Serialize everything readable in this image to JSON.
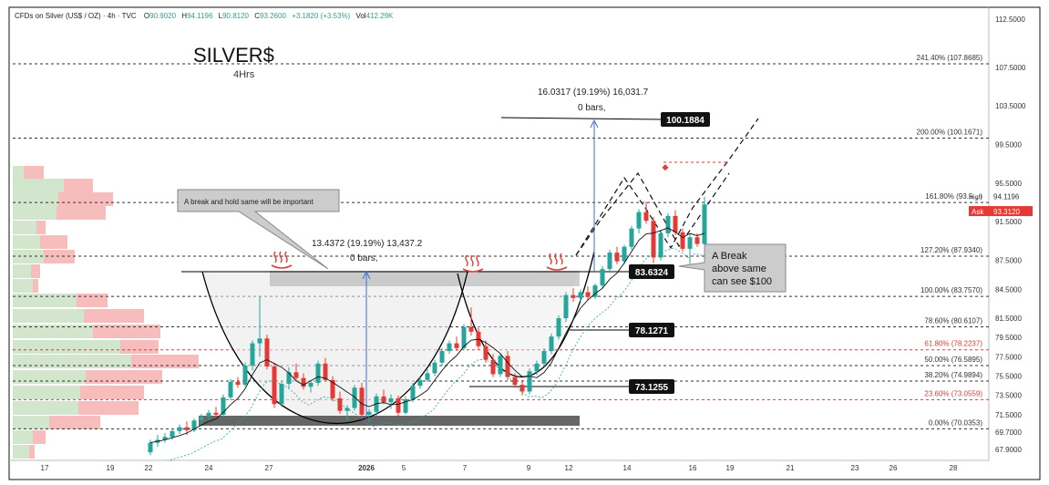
{
  "header": {
    "symbol_line": "CFDs on Silver (US$ / OZ) · 4h · TVC",
    "open_label": "O",
    "open": "90.9020",
    "high_label": "H",
    "high": "94.1196",
    "low_label": "L",
    "low": "90.8120",
    "close_label": "C",
    "close": "93.2600",
    "change": "+3.1820 (+3.53%)",
    "vol_label": "Vol",
    "vol": "412.29K"
  },
  "title": {
    "main": "SILVER$",
    "sub": "4Hrs"
  },
  "price_axis": {
    "ticks": [
      "112.5000",
      "107.5000",
      "103.5000",
      "99.5000",
      "95.5000",
      "91.5000",
      "87.5000",
      "84.5000",
      "81.5000",
      "79.5000",
      "77.5000",
      "75.5000",
      "73.5000",
      "71.5000",
      "69.7000",
      "67.9000"
    ],
    "high_tag": {
      "label": "High",
      "value": "94.1196"
    },
    "ask_tag": {
      "label": "Ask",
      "value": "93.3120"
    }
  },
  "time_axis": [
    "17",
    "19",
    "22",
    "24",
    "27",
    "2026",
    "5",
    "7",
    "9",
    "12",
    "14",
    "16",
    "19",
    "21",
    "23",
    "26",
    "28"
  ],
  "fib_levels": [
    {
      "label": "241.40% (107.8685)",
      "color": "#333333",
      "price": 107.8685
    },
    {
      "label": "200.00% (100.1671)",
      "color": "#333333",
      "price": 100.1671
    },
    {
      "label": "161.80% (93.5…)",
      "color": "#333333",
      "price": 93.5
    },
    {
      "label": "127.20% (87.9340)",
      "color": "#333333",
      "price": 87.934
    },
    {
      "label": "100.00% (83.7570)",
      "color": "#333333",
      "price": 83.757
    },
    {
      "label": "78.60% (80.6107)",
      "color": "#333333",
      "price": 80.6107
    },
    {
      "label": "61.80% (78.2237)",
      "color": "#e53935",
      "price": 78.2237
    },
    {
      "label": "50.00% (76.5895)",
      "color": "#333333",
      "price": 76.5895
    },
    {
      "label": "38.20% (74.9894)",
      "color": "#333333",
      "price": 74.9894
    },
    {
      "label": "23.60% (73.0559)",
      "color": "#e53935",
      "price": 73.0559
    },
    {
      "label": "0.00% (70.0353)",
      "color": "#333333",
      "price": 70.0353
    }
  ],
  "annotations": {
    "callout_hold": "A break and hold same will be important",
    "measure_left": "13.4372 (19.19%) 13,437.2",
    "measure_left_bars": "0 bars,",
    "measure_right": "16.0317 (19.19%) 16,031.7",
    "measure_right_bars": "0 bars,",
    "label_target": "100.1884",
    "label_resist": "83.6324",
    "label_mid": "78.1271",
    "label_support": "73.1255",
    "break_note_line1": "A Break",
    "break_note_line2": "above same",
    "break_note_line3": "can see $100",
    "cup_icon": "hot-springs-icon"
  },
  "chart_data": {
    "type": "candlestick",
    "title": "SILVER$",
    "subtitle": "4Hrs",
    "ylim": [
      66.9,
      113.5
    ],
    "candles": [
      [
        67.6,
        68.9,
        67.3,
        68.6
      ],
      [
        68.6,
        69.4,
        68.2,
        68.9
      ],
      [
        68.9,
        69.6,
        68.6,
        69.2
      ],
      [
        69.2,
        70.1,
        68.9,
        69.8
      ],
      [
        69.8,
        70.5,
        69.5,
        70.2
      ],
      [
        70.2,
        70.8,
        69.4,
        69.9
      ],
      [
        69.9,
        71.1,
        69.7,
        70.9
      ],
      [
        70.9,
        71.6,
        70.5,
        71.3
      ],
      [
        71.3,
        72.0,
        70.9,
        71.7
      ],
      [
        71.7,
        72.3,
        71.1,
        71.5
      ],
      [
        71.5,
        73.6,
        71.3,
        73.3
      ],
      [
        73.3,
        75.2,
        73.0,
        74.9
      ],
      [
        74.9,
        75.4,
        74.3,
        74.6
      ],
      [
        74.6,
        76.9,
        74.4,
        76.6
      ],
      [
        76.6,
        79.2,
        76.1,
        78.9
      ],
      [
        78.9,
        83.8,
        77.5,
        79.4
      ],
      [
        79.4,
        79.8,
        76.2,
        76.5
      ],
      [
        76.5,
        76.9,
        72.2,
        72.6
      ],
      [
        72.6,
        75.0,
        72.3,
        74.7
      ],
      [
        74.7,
        76.4,
        74.2,
        75.9
      ],
      [
        75.9,
        76.8,
        75.0,
        75.3
      ],
      [
        75.3,
        75.8,
        74.1,
        74.4
      ],
      [
        74.4,
        75.1,
        73.8,
        74.8
      ],
      [
        74.8,
        77.1,
        74.5,
        76.8
      ],
      [
        76.8,
        77.4,
        74.9,
        75.1
      ],
      [
        75.1,
        75.5,
        72.9,
        73.2
      ],
      [
        73.2,
        73.9,
        71.6,
        71.9
      ],
      [
        71.9,
        72.5,
        70.9,
        72.2
      ],
      [
        72.2,
        74.6,
        71.9,
        74.3
      ],
      [
        74.3,
        74.8,
        71.2,
        71.5
      ],
      [
        71.5,
        72.1,
        70.7,
        71.8
      ],
      [
        71.8,
        73.7,
        71.4,
        73.4
      ],
      [
        73.4,
        74.1,
        72.6,
        72.8
      ],
      [
        72.8,
        73.6,
        72.1,
        73.2
      ],
      [
        73.2,
        73.5,
        71.4,
        71.7
      ],
      [
        71.7,
        73.4,
        71.5,
        73.1
      ],
      [
        73.1,
        74.8,
        72.8,
        74.5
      ],
      [
        74.5,
        75.4,
        74.2,
        75.1
      ],
      [
        75.1,
        76.2,
        74.9,
        75.8
      ],
      [
        75.8,
        77.2,
        75.5,
        76.9
      ],
      [
        76.9,
        78.4,
        76.6,
        78.1
      ],
      [
        78.1,
        79.2,
        77.8,
        78.9
      ],
      [
        78.9,
        79.6,
        78.1,
        78.4
      ],
      [
        78.4,
        80.9,
        78.2,
        80.6
      ],
      [
        80.6,
        82.6,
        79.7,
        80.1
      ],
      [
        80.1,
        80.5,
        78.3,
        78.6
      ],
      [
        78.6,
        79.2,
        76.9,
        77.2
      ],
      [
        77.2,
        77.8,
        75.4,
        75.7
      ],
      [
        75.7,
        77.9,
        75.4,
        77.6
      ],
      [
        77.6,
        78.1,
        75.1,
        75.4
      ],
      [
        75.4,
        75.8,
        74.3,
        74.6
      ],
      [
        74.6,
        75.1,
        73.5,
        73.9
      ],
      [
        73.9,
        76.3,
        73.6,
        76.0
      ],
      [
        76.0,
        77.1,
        75.6,
        76.8
      ],
      [
        76.8,
        78.4,
        76.5,
        78.1
      ],
      [
        78.1,
        79.9,
        77.8,
        79.6
      ],
      [
        79.6,
        81.8,
        79.3,
        81.5
      ],
      [
        81.5,
        84.2,
        81.1,
        83.9
      ],
      [
        83.9,
        84.6,
        83.2,
        83.6
      ],
      [
        83.6,
        84.5,
        83.1,
        84.2
      ],
      [
        84.2,
        84.8,
        83.4,
        83.7
      ],
      [
        83.7,
        85.1,
        83.5,
        84.9
      ],
      [
        84.9,
        86.9,
        84.6,
        86.6
      ],
      [
        86.6,
        88.6,
        86.2,
        88.3
      ],
      [
        88.3,
        88.9,
        87.1,
        87.4
      ],
      [
        87.4,
        89.1,
        87.1,
        88.9
      ],
      [
        88.9,
        91.1,
        88.6,
        90.8
      ],
      [
        90.8,
        92.8,
        90.3,
        92.5
      ],
      [
        92.5,
        93.6,
        91.3,
        91.6
      ],
      [
        91.6,
        92.0,
        87.2,
        87.8
      ],
      [
        87.8,
        90.6,
        87.5,
        90.3
      ],
      [
        90.3,
        92.4,
        89.9,
        92.1
      ],
      [
        92.1,
        92.7,
        90.1,
        90.4
      ],
      [
        90.4,
        90.8,
        88.4,
        88.7
      ],
      [
        88.7,
        90.2,
        87.1,
        89.9
      ],
      [
        89.9,
        90.3,
        88.9,
        89.2
      ],
      [
        89.2,
        94.1,
        88.9,
        93.3
      ]
    ]
  }
}
